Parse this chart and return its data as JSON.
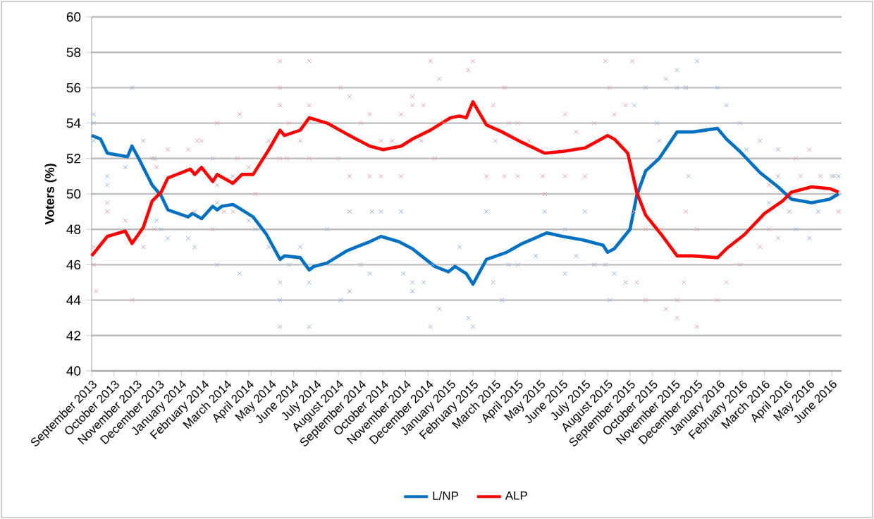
{
  "chart_data": {
    "type": "line",
    "ylabel": "Voters (%)",
    "xlim": [
      "2013-09-01",
      "2016-06-14"
    ],
    "ylim": [
      40,
      60
    ],
    "yticks": [
      40,
      42,
      44,
      46,
      48,
      50,
      52,
      54,
      56,
      58,
      60
    ],
    "xticks": [
      {
        "value": "2013-09",
        "label": "September 2013"
      },
      {
        "value": "2013-10",
        "label": "October 2013"
      },
      {
        "value": "2013-11",
        "label": "November 2013"
      },
      {
        "value": "2013-12",
        "label": "December 2013"
      },
      {
        "value": "2014-01",
        "label": "January 2014"
      },
      {
        "value": "2014-02",
        "label": "February 2014"
      },
      {
        "value": "2014-03",
        "label": "March 2014"
      },
      {
        "value": "2014-04",
        "label": "April 2014"
      },
      {
        "value": "2014-05",
        "label": "May 2014"
      },
      {
        "value": "2014-06",
        "label": "June 2014"
      },
      {
        "value": "2014-07",
        "label": "July 2014"
      },
      {
        "value": "2014-08",
        "label": "August 2014"
      },
      {
        "value": "2014-09",
        "label": "September 2014"
      },
      {
        "value": "2014-10",
        "label": "October 2014"
      },
      {
        "value": "2014-11",
        "label": "November 2014"
      },
      {
        "value": "2014-12",
        "label": "December 2014"
      },
      {
        "value": "2015-01",
        "label": "January 2015"
      },
      {
        "value": "2015-02",
        "label": "February 2015"
      },
      {
        "value": "2015-03",
        "label": "March 2015"
      },
      {
        "value": "2015-04",
        "label": "April 2015"
      },
      {
        "value": "2015-05",
        "label": "May 2015"
      },
      {
        "value": "2015-06",
        "label": "June 2015"
      },
      {
        "value": "2015-07",
        "label": "July 2015"
      },
      {
        "value": "2015-08",
        "label": "August 2015"
      },
      {
        "value": "2015-09",
        "label": "September 2015"
      },
      {
        "value": "2015-10",
        "label": "October 2015"
      },
      {
        "value": "2015-11",
        "label": "November 2015"
      },
      {
        "value": "2015-12",
        "label": "December 2015"
      },
      {
        "value": "2016-01",
        "label": "January 2016"
      },
      {
        "value": "2016-02",
        "label": "February 2016"
      },
      {
        "value": "2016-03",
        "label": "March 2016"
      },
      {
        "value": "2016-04",
        "label": "April 2016"
      },
      {
        "value": "2016-05",
        "label": "May 2016"
      },
      {
        "value": "2016-06",
        "label": "June 2016"
      }
    ],
    "grid": "y",
    "legend": "bottom",
    "line_style": "solid",
    "series": [
      {
        "type": "scatter",
        "marker": "cross",
        "color": "#8fb4e3",
        "x": [
          "2013-09-04",
          "2013-09-04",
          "2013-09-04",
          "2013-09-22",
          "2013-09-22",
          "2013-10-16",
          "2013-10-25",
          "2013-11-10",
          "2013-11-25",
          "2013-11-28",
          "2013-12-04",
          "2013-12-13",
          "2014-01-10",
          "2014-01-19",
          "2014-02-13",
          "2014-02-19",
          "2014-02-19",
          "2014-03-10",
          "2014-03-19",
          "2014-04-01",
          "2014-04-10",
          "2014-04-28",
          "2014-05-13",
          "2014-05-13",
          "2014-05-13",
          "2014-05-25",
          "2014-06-10",
          "2014-06-22",
          "2014-06-22",
          "2014-07-16",
          "2014-08-04",
          "2014-08-16",
          "2014-08-16",
          "2014-09-01",
          "2014-09-13",
          "2014-09-16",
          "2014-09-28",
          "2014-10-25",
          "2014-10-28",
          "2014-11-10",
          "2014-11-10",
          "2014-11-25",
          "2014-12-04",
          "2014-12-16",
          "2014-12-07",
          "2015-01-13",
          "2015-01-25",
          "2015-02-01",
          "2015-02-19",
          "2015-02-28",
          "2015-03-10",
          "2015-03-19",
          "2015-04-01",
          "2015-04-25",
          "2015-05-07",
          "2015-06-04",
          "2015-06-04",
          "2015-06-19",
          "2015-07-01",
          "2015-07-13",
          "2015-07-28",
          "2015-08-04",
          "2015-08-10",
          "2015-08-25",
          "2015-09-07",
          "2015-09-22",
          "2015-10-07",
          "2015-10-10",
          "2015-10-19",
          "2015-11-04",
          "2015-11-04",
          "2015-11-16",
          "2015-12-01",
          "2015-11-19",
          "2015-12-28",
          "2016-01-10",
          "2016-01-28",
          "2016-02-07",
          "2016-02-25",
          "2016-03-07",
          "2016-03-19",
          "2016-04-13",
          "2016-05-01",
          "2016-04-04",
          "2016-05-13",
          "2016-06-04",
          "2016-06-10"
        ],
        "values": [
          54.5,
          54,
          53,
          51,
          50.5,
          51.5,
          56,
          53,
          52,
          48.5,
          48,
          47.5,
          47.5,
          47,
          52,
          46,
          49.5,
          51,
          45.5,
          48.5,
          48,
          47,
          45,
          44,
          42.5,
          46,
          47,
          45,
          42.5,
          48,
          44,
          49,
          44.5,
          46,
          45.5,
          49,
          49,
          49,
          45.5,
          44.5,
          45,
          45,
          42.5,
          43.5,
          46,
          47,
          43,
          42.5,
          49,
          45,
          44,
          46,
          46,
          46.5,
          49,
          48,
          45.5,
          46.5,
          49,
          46,
          46,
          44,
          45.5,
          45,
          55,
          56,
          54,
          53,
          56.5,
          57,
          56,
          56,
          57.5,
          51,
          56,
          55,
          54,
          52.5,
          53,
          49.5,
          52.5,
          48,
          47.5,
          49,
          49,
          51,
          51
        ]
      },
      {
        "type": "scatter",
        "marker": "cross",
        "color": "#e6a0a0",
        "x": [
          "2013-09-04",
          "2013-09-04",
          "2013-09-07",
          "2013-09-22",
          "2013-09-22",
          "2013-10-16",
          "2013-10-25",
          "2013-11-10",
          "2013-11-22",
          "2013-11-28",
          "2013-11-25",
          "2013-12-13",
          "2014-01-10",
          "2014-01-22",
          "2014-01-28",
          "2014-01-19",
          "2014-02-13",
          "2014-02-19",
          "2014-02-19",
          "2014-02-28",
          "2014-03-10",
          "2014-03-19",
          "2014-03-16",
          "2014-04-01",
          "2014-04-10",
          "2014-04-28",
          "2014-05-13",
          "2014-05-13",
          "2014-05-13",
          "2014-05-13",
          "2014-05-22",
          "2014-05-25",
          "2014-06-10",
          "2014-06-22",
          "2014-06-22",
          "2014-06-22",
          "2014-08-04",
          "2014-08-16",
          "2014-08-16",
          "2014-08-01",
          "2014-09-01",
          "2014-09-13",
          "2014-09-13",
          "2014-09-28",
          "2014-09-28",
          "2014-10-13",
          "2014-10-25",
          "2014-10-25",
          "2014-11-10",
          "2014-11-10",
          "2014-11-25",
          "2014-11-22",
          "2014-12-04",
          "2014-12-16",
          "2014-12-10",
          "2014-12-22",
          "2015-01-25",
          "2015-02-01",
          "2015-03-13",
          "2015-02-28",
          "2015-02-19",
          "2015-03-13",
          "2015-04-01",
          "2015-03-19",
          "2015-04-01",
          "2015-03-01",
          "2015-04-16",
          "2015-05-04",
          "2015-05-07",
          "2015-06-04",
          "2015-06-19",
          "2015-06-04",
          "2015-07-01",
          "2015-07-13",
          "2015-07-28",
          "2015-08-04",
          "2015-08-10",
          "2015-08-25",
          "2015-09-04",
          "2015-09-07",
          "2015-09-10",
          "2015-09-22",
          "2015-09-22",
          "2015-10-13",
          "2015-10-19",
          "2015-11-04",
          "2015-11-04",
          "2015-11-13",
          "2015-11-16",
          "2015-12-01",
          "2015-12-01",
          "2015-12-28",
          "2016-01-10",
          "2016-01-28",
          "2016-02-25",
          "2016-03-07",
          "2016-03-07",
          "2016-03-19",
          "2016-03-19",
          "2016-04-13",
          "2016-05-01",
          "2016-04-19",
          "2016-05-16",
          "2016-06-01",
          "2016-06-10"
        ],
        "values": [
          47,
          46,
          44.5,
          49.5,
          49,
          48.5,
          44,
          47,
          52,
          51.5,
          48,
          52.5,
          52.5,
          53,
          53,
          49,
          48,
          54,
          50.5,
          49,
          49,
          54.5,
          52,
          51.5,
          50,
          53,
          57.5,
          56,
          55,
          52,
          52,
          54,
          53,
          57.5,
          55,
          52,
          56,
          55.5,
          51,
          52,
          54,
          54.5,
          51,
          51,
          53,
          53,
          51,
          54.5,
          55.5,
          55,
          55,
          53,
          57.5,
          56.5,
          52,
          54,
          57,
          57.5,
          56,
          55,
          51,
          51,
          51,
          54,
          54,
          53,
          53,
          51,
          50,
          54.5,
          53.5,
          51,
          51,
          54,
          57.5,
          56,
          54.5,
          55,
          57.5,
          49,
          45,
          48,
          44,
          48,
          43.5,
          44,
          43,
          45,
          49,
          48,
          42.5,
          44,
          45,
          46,
          47,
          50.5,
          48,
          47.5,
          51,
          52,
          52.5,
          51,
          51,
          51,
          49
        ]
      },
      {
        "name": "L/NP",
        "color": "#0070c0",
        "x": [
          "2013-09-01",
          "2013-09-13",
          "2013-09-22",
          "2013-10-19",
          "2013-10-25",
          "2013-11-04",
          "2013-11-22",
          "2013-12-04",
          "2013-12-13",
          "2014-01-10",
          "2014-01-16",
          "2014-01-28",
          "2014-02-13",
          "2014-02-19",
          "2014-02-25",
          "2014-03-10",
          "2014-03-22",
          "2014-04-07",
          "2014-04-25",
          "2014-05-13",
          "2014-05-19",
          "2014-06-10",
          "2014-06-22",
          "2014-06-28",
          "2014-07-16",
          "2014-08-13",
          "2014-09-13",
          "2014-09-28",
          "2014-10-22",
          "2014-11-10",
          "2014-11-22",
          "2014-12-10",
          "2014-12-28",
          "2015-01-07",
          "2015-01-22",
          "2015-02-01",
          "2015-02-19",
          "2015-03-16",
          "2015-04-07",
          "2015-05-10",
          "2015-06-01",
          "2015-06-28",
          "2015-07-25",
          "2015-08-01",
          "2015-08-10",
          "2015-09-01",
          "2015-09-10",
          "2015-09-22",
          "2015-10-10",
          "2015-11-04",
          "2015-11-25",
          "2015-12-28",
          "2016-01-10",
          "2016-01-28",
          "2016-02-25",
          "2016-03-19",
          "2016-04-07",
          "2016-05-04",
          "2016-05-28",
          "2016-06-10"
        ],
        "values": [
          53.3,
          53.1,
          52.3,
          52.1,
          52.7,
          52.0,
          50.5,
          49.9,
          49.1,
          48.7,
          48.9,
          48.6,
          49.3,
          49.1,
          49.3,
          49.4,
          49.1,
          48.7,
          47.7,
          46.3,
          46.5,
          46.4,
          45.7,
          45.9,
          46.1,
          46.8,
          47.3,
          47.6,
          47.3,
          46.9,
          46.5,
          45.9,
          45.6,
          45.9,
          45.5,
          44.9,
          46.3,
          46.7,
          47.2,
          47.8,
          47.6,
          47.4,
          47.1,
          46.7,
          46.9,
          48.0,
          49.9,
          51.3,
          52.0,
          53.5,
          53.5,
          53.7,
          53.1,
          52.4,
          51.2,
          50.4,
          49.7,
          49.5,
          49.7,
          50.0
        ]
      },
      {
        "name": "ALP",
        "color": "#ff0000",
        "x": [
          "2013-09-01",
          "2013-09-22",
          "2013-10-16",
          "2013-10-25",
          "2013-11-10",
          "2013-11-22",
          "2013-12-04",
          "2013-12-13",
          "2014-01-13",
          "2014-01-19",
          "2014-01-28",
          "2014-02-13",
          "2014-02-19",
          "2014-03-10",
          "2014-03-22",
          "2014-04-07",
          "2014-04-28",
          "2014-05-13",
          "2014-05-19",
          "2014-06-10",
          "2014-06-22",
          "2014-07-16",
          "2014-08-16",
          "2014-09-13",
          "2014-10-01",
          "2014-10-25",
          "2014-11-10",
          "2014-12-04",
          "2015-01-01",
          "2015-01-13",
          "2015-01-22",
          "2015-02-01",
          "2015-02-19",
          "2015-03-10",
          "2015-04-07",
          "2015-05-07",
          "2015-06-01",
          "2015-07-01",
          "2015-08-01",
          "2015-08-10",
          "2015-08-28",
          "2015-09-10",
          "2015-09-22",
          "2015-10-13",
          "2015-11-04",
          "2015-11-25",
          "2015-12-28",
          "2016-01-10",
          "2016-02-04",
          "2016-03-01",
          "2016-03-25",
          "2016-04-07",
          "2016-05-04",
          "2016-05-28",
          "2016-06-10"
        ],
        "values": [
          46.5,
          47.6,
          47.9,
          47.2,
          48.1,
          49.6,
          50.1,
          50.9,
          51.4,
          51.1,
          51.5,
          50.7,
          51.1,
          50.6,
          51.1,
          51.1,
          52.5,
          53.6,
          53.3,
          53.6,
          54.3,
          54.0,
          53.3,
          52.7,
          52.5,
          52.7,
          53.1,
          53.6,
          54.3,
          54.4,
          54.3,
          55.2,
          53.9,
          53.5,
          52.9,
          52.3,
          52.4,
          52.6,
          53.3,
          53.1,
          52.3,
          50.1,
          48.8,
          47.7,
          46.5,
          46.5,
          46.4,
          46.9,
          47.7,
          48.9,
          49.6,
          50.1,
          50.4,
          50.3,
          50.1
        ]
      }
    ]
  }
}
